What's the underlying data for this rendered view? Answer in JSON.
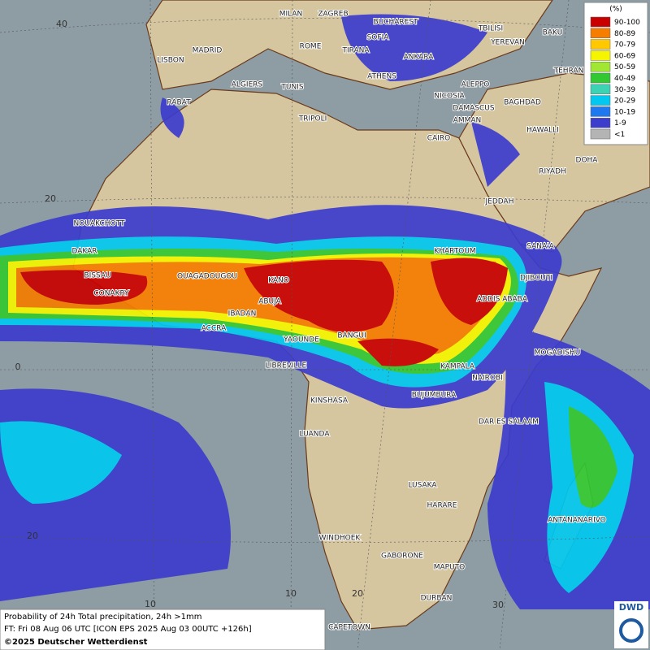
{
  "map": {
    "cities": [
      "MILAN",
      "ZAGREB",
      "BUCHAREST",
      "TBILISI",
      "BAKU",
      "SOFIA",
      "YEREVAN",
      "MADRID",
      "ROME",
      "TIRANA",
      "ANKARA",
      "LISBON",
      "TEHRAN",
      "ATHENS",
      "ALGIERS",
      "TUNIS",
      "ALEPPO",
      "RABAT",
      "NICOSIA",
      "BAGHDAD",
      "TRIPOLI",
      "DAMASCUS",
      "AMMAN",
      "HAWALLI",
      "CAIRO",
      "DOHA",
      "RIYADH",
      "JEDDAH",
      "NOUAKCHOTT",
      "SANA'A",
      "DAKAR",
      "KHARTOUM",
      "BISSAU",
      "OUAGADOUGOU",
      "KANO",
      "DJIBOUTI",
      "CONAKRY",
      "ADDIS ABABA",
      "ABUJA",
      "IBADAN",
      "ACCRA",
      "YAOUNDE",
      "BANGUI",
      "MOGADISHU",
      "LIBREVILLE",
      "KAMPALA",
      "NAIROBI",
      "BUJUMBURA",
      "KINSHASA",
      "DAR ES SALAAM",
      "LUANDA",
      "LUSAKA",
      "HARARE",
      "ANTANANARIVO",
      "WINDHOEK",
      "GABORONE",
      "MAPUTO",
      "DURBAN",
      "CAPETOWN"
    ],
    "lat_labels": [
      "40",
      "20",
      "0",
      "20"
    ],
    "lon_labels": [
      "10",
      "10",
      "20",
      "30"
    ]
  },
  "legend": {
    "title": "(%)",
    "entries": [
      {
        "label": "90-100",
        "color": "#c80000"
      },
      {
        "label": "80-89",
        "color": "#f57d00"
      },
      {
        "label": "70-79",
        "color": "#ffc800"
      },
      {
        "label": "60-69",
        "color": "#f5f500"
      },
      {
        "label": "50-59",
        "color": "#a0e632"
      },
      {
        "label": "40-49",
        "color": "#32c832"
      },
      {
        "label": "30-39",
        "color": "#3cd2b4"
      },
      {
        "label": "20-29",
        "color": "#00c8f0"
      },
      {
        "label": "10-19",
        "color": "#1e78f0"
      },
      {
        "label": "1-9",
        "color": "#3c3ccd"
      },
      {
        "label": "<1",
        "color": "#b4b4b4"
      }
    ]
  },
  "footer": {
    "line1": "Probability of 24h Total precipitation, 24h >1mm",
    "line2": "FT: Fri 08 Aug 06 UTC [ICON EPS 2025 Aug 03 00UTC +126h]",
    "line3": "©2025 Deutscher Wetterdienst"
  },
  "logo": "DWD"
}
